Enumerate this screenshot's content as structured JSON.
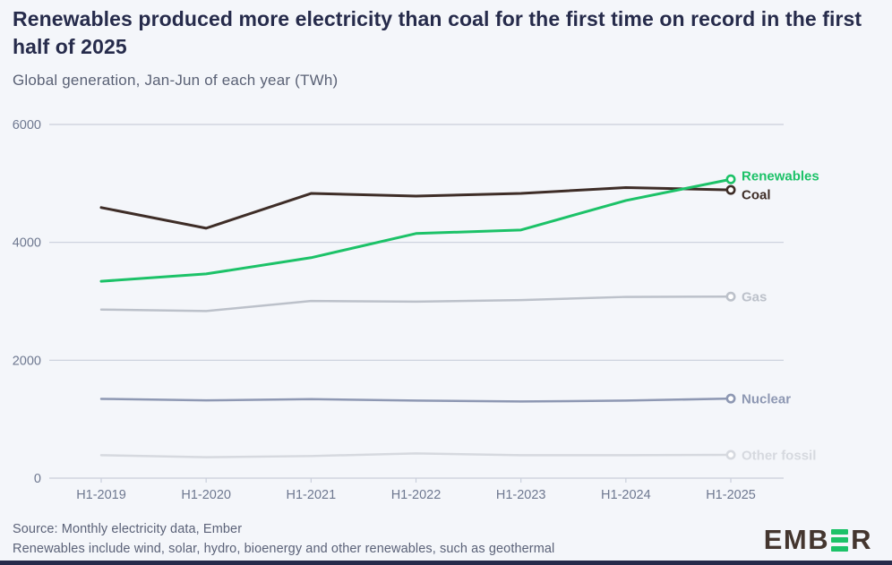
{
  "header": {
    "title": "Renewables produced more electricity than coal for the first time on record in the first half of 2025",
    "subtitle": "Global generation, Jan-Jun of each year (TWh)"
  },
  "chart_data": {
    "type": "line",
    "title": "Renewables produced more electricity than coal for the first time on record in the first half of 2025",
    "subtitle": "Global generation, Jan-Jun of each year (TWh)",
    "unit": "TWh",
    "categories": [
      "H1-2019",
      "H1-2020",
      "H1-2021",
      "H1-2022",
      "H1-2023",
      "H1-2024",
      "H1-2025"
    ],
    "ylim": [
      0,
      6000
    ],
    "yticks": [
      0,
      2000,
      4000,
      6000
    ],
    "grid": true,
    "legend_position": "end-of-line-labels-right",
    "series": [
      {
        "name": "Renewables",
        "color": "#1cc268",
        "line_width": 3,
        "values": [
          3340,
          3465,
          3740,
          4150,
          4210,
          4710,
          5070
        ]
      },
      {
        "name": "Coal",
        "color": "#3e2d27",
        "line_width": 3,
        "values": [
          4590,
          4240,
          4830,
          4785,
          4830,
          4930,
          4890
        ]
      },
      {
        "name": "Gas",
        "color": "#bcc1ca",
        "line_width": 2.5,
        "values": [
          2860,
          2835,
          3005,
          2995,
          3020,
          3075,
          3080
        ]
      },
      {
        "name": "Nuclear",
        "color": "#8e98b3",
        "line_width": 2.5,
        "values": [
          1345,
          1320,
          1340,
          1315,
          1300,
          1315,
          1350
        ]
      },
      {
        "name": "Other fossil",
        "color": "#d6d9df",
        "line_width": 2.5,
        "values": [
          390,
          355,
          375,
          420,
          390,
          390,
          395
        ]
      }
    ],
    "colors": {
      "background": "#f4f6fa",
      "grid": "#c9cedb",
      "axis_text": "#6e7890",
      "marker_fill": "#ffffff"
    }
  },
  "footer": {
    "source": "Source: Monthly electricity data, Ember",
    "note": "Renewables include wind, solar, hydro, bioenergy and other renewables, such as geothermal"
  },
  "logo": {
    "text": "EMBER",
    "prefix": "EMB",
    "suffix": "R"
  }
}
